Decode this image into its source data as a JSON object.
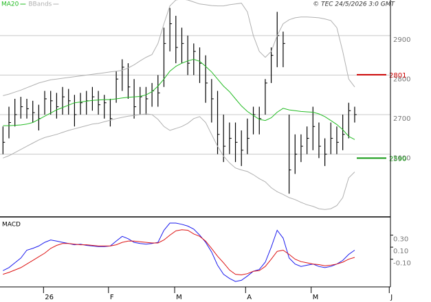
{
  "header": "© TEC 24/5/2026 3:0 GMT",
  "chart_data": [
    {
      "type": "ohlc",
      "color": "#000000",
      "ylim": [
        2443,
        2990
      ],
      "yticks": [
        2600,
        2700,
        2800,
        2900
      ],
      "grid": true,
      "xlim": [
        -0.5,
        65
      ],
      "high": [
        2670,
        2720,
        2740,
        2745,
        2740,
        2735,
        2725,
        2760,
        2760,
        2755,
        2770,
        2765,
        2750,
        2755,
        2760,
        2770,
        2760,
        2750,
        2740,
        2810,
        2840,
        2830,
        2790,
        2770,
        2770,
        2780,
        2800,
        2920,
        2970,
        2950,
        2920,
        2900,
        2880,
        2870,
        2850,
        2790,
        2760,
        2700,
        2680,
        2680,
        2660,
        2690,
        2720,
        2720,
        2790,
        2870,
        2960,
        2910,
        2700,
        2650,
        2650,
        2670,
        2720,
        2680,
        2640,
        2680,
        2670,
        2700,
        2730,
        2720
      ],
      "low": [
        2600,
        2640,
        2670,
        2690,
        2690,
        2680,
        2660,
        2700,
        2700,
        2690,
        2700,
        2700,
        2670,
        2700,
        2700,
        2710,
        2700,
        2690,
        2670,
        2730,
        2760,
        2740,
        2690,
        2700,
        2700,
        2720,
        2720,
        2770,
        2860,
        2830,
        2830,
        2800,
        2800,
        2780,
        2730,
        2680,
        2600,
        2580,
        2600,
        2580,
        2570,
        2600,
        2650,
        2650,
        2700,
        2780,
        2820,
        2820,
        2500,
        2550,
        2580,
        2600,
        2610,
        2590,
        2570,
        2600,
        2600,
        2610,
        2640,
        2680
      ],
      "close": [
        2630,
        2680,
        2700,
        2720,
        2715,
        2705,
        2690,
        2740,
        2735,
        2720,
        2745,
        2735,
        2700,
        2730,
        2735,
        2745,
        2725,
        2730,
        2690,
        2790,
        2820,
        2770,
        2720,
        2745,
        2740,
        2760,
        2755,
        2880,
        2930,
        2870,
        2880,
        2830,
        2860,
        2830,
        2780,
        2740,
        2650,
        2620,
        2640,
        2630,
        2610,
        2640,
        2700,
        2690,
        2780,
        2850,
        2900,
        2880,
        2560,
        2600,
        2620,
        2640,
        2670,
        2620,
        2600,
        2640,
        2630,
        2650,
        2710,
        2700
      ],
      "series": [
        {
          "name": "MA20",
          "color": "#22bb22",
          "values": [
            2672,
            2672,
            2673,
            2674,
            2676,
            2680,
            2688,
            2696,
            2704,
            2712,
            2718,
            2724,
            2730,
            2732,
            2734,
            2736,
            2737,
            2738,
            2738,
            2740,
            2742,
            2744,
            2745,
            2746,
            2750,
            2758,
            2772,
            2790,
            2810,
            2822,
            2830,
            2836,
            2840,
            2835,
            2822,
            2808,
            2790,
            2772,
            2758,
            2740,
            2722,
            2708,
            2698,
            2688,
            2685,
            2692,
            2706,
            2716,
            2712,
            2710,
            2708,
            2707,
            2706,
            2702,
            2695,
            2685,
            2675,
            2662,
            2645,
            2637
          ]
        },
        {
          "name": "BBands",
          "color": "#b0b0b0",
          "values": [
            2748,
            2752,
            2757,
            2762,
            2768,
            2774,
            2780,
            2784,
            2788,
            2790,
            2792,
            2794,
            2796,
            2798,
            2800,
            2802,
            2804,
            2806,
            2808,
            2810,
            2812,
            2818,
            2826,
            2836,
            2845,
            2852,
            2880,
            2930,
            2975,
            2990,
            2992,
            2990,
            2985,
            2980,
            2978,
            2976,
            2975,
            2975,
            2978,
            2980,
            2982,
            2960,
            2900,
            2860,
            2845,
            2860,
            2900,
            2930,
            2940,
            2945,
            2947,
            2947,
            2946,
            2945,
            2942,
            2938,
            2920,
            2860,
            2790,
            2770
          ],
          "lower": [
            2590,
            2596,
            2604,
            2612,
            2620,
            2628,
            2636,
            2642,
            2646,
            2650,
            2655,
            2660,
            2664,
            2668,
            2672,
            2676,
            2678,
            2682,
            2686,
            2690,
            2693,
            2696,
            2698,
            2700,
            2702,
            2700,
            2688,
            2670,
            2660,
            2665,
            2670,
            2678,
            2690,
            2695,
            2680,
            2650,
            2620,
            2595,
            2578,
            2565,
            2560,
            2556,
            2548,
            2538,
            2530,
            2515,
            2505,
            2498,
            2490,
            2485,
            2478,
            2472,
            2468,
            2462,
            2460,
            2462,
            2470,
            2490,
            2540,
            2555
          ]
        }
      ],
      "levels": [
        {
          "value": 2801,
          "color": "#cc0000"
        },
        {
          "value": 2590,
          "color": "#119911"
        }
      ]
    },
    {
      "type": "line",
      "title": "MACD",
      "ylim": [
        -0.56,
        0.58
      ],
      "yticks": [
        {
          "value": 0.3,
          "label": "0.30"
        },
        {
          "value": 0.1,
          "label": "0.10"
        },
        {
          "value": -0.1,
          "label": "-0.10"
        }
      ],
      "xlim": [
        -0.5,
        65
      ],
      "xticks": [
        {
          "value": 6.8,
          "label": "26"
        },
        {
          "value": 17.7,
          "label": "F"
        },
        {
          "value": 28.8,
          "label": "M"
        },
        {
          "value": 40.7,
          "label": "A"
        },
        {
          "value": 51.7,
          "label": "M"
        },
        {
          "value": 64.8,
          "label": "J"
        }
      ],
      "series": [
        {
          "color": "#1a1aee",
          "values": [
            -0.29,
            -0.24,
            -0.16,
            -0.08,
            0.05,
            0.08,
            0.12,
            0.18,
            0.22,
            0.2,
            0.18,
            0.16,
            0.14,
            0.15,
            0.13,
            0.12,
            0.11,
            0.11,
            0.12,
            0.2,
            0.28,
            0.24,
            0.18,
            0.16,
            0.15,
            0.16,
            0.18,
            0.38,
            0.5,
            0.5,
            0.48,
            0.45,
            0.4,
            0.3,
            0.18,
            0.02,
            -0.2,
            -0.35,
            -0.42,
            -0.47,
            -0.45,
            -0.38,
            -0.3,
            -0.27,
            -0.15,
            0.1,
            0.38,
            0.25,
            -0.08,
            -0.18,
            -0.22,
            -0.2,
            -0.18,
            -0.22,
            -0.24,
            -0.22,
            -0.18,
            -0.12,
            -0.02,
            0.05
          ]
        },
        {
          "color": "#dd1111",
          "values": [
            -0.35,
            -0.32,
            -0.28,
            -0.24,
            -0.18,
            -0.12,
            -0.06,
            0,
            0.08,
            0.13,
            0.16,
            0.16,
            0.15,
            0.14,
            0.14,
            0.13,
            0.12,
            0.12,
            0.12,
            0.14,
            0.18,
            0.2,
            0.2,
            0.19,
            0.18,
            0.17,
            0.17,
            0.22,
            0.3,
            0.37,
            0.39,
            0.38,
            0.32,
            0.28,
            0.2,
            0.08,
            -0.05,
            -0.16,
            -0.28,
            -0.35,
            -0.36,
            -0.34,
            -0.3,
            -0.29,
            -0.22,
            -0.1,
            0.03,
            0.05,
            -0.02,
            -0.1,
            -0.14,
            -0.16,
            -0.18,
            -0.19,
            -0.21,
            -0.2,
            -0.18,
            -0.15,
            -0.1,
            -0.07
          ]
        }
      ]
    }
  ]
}
